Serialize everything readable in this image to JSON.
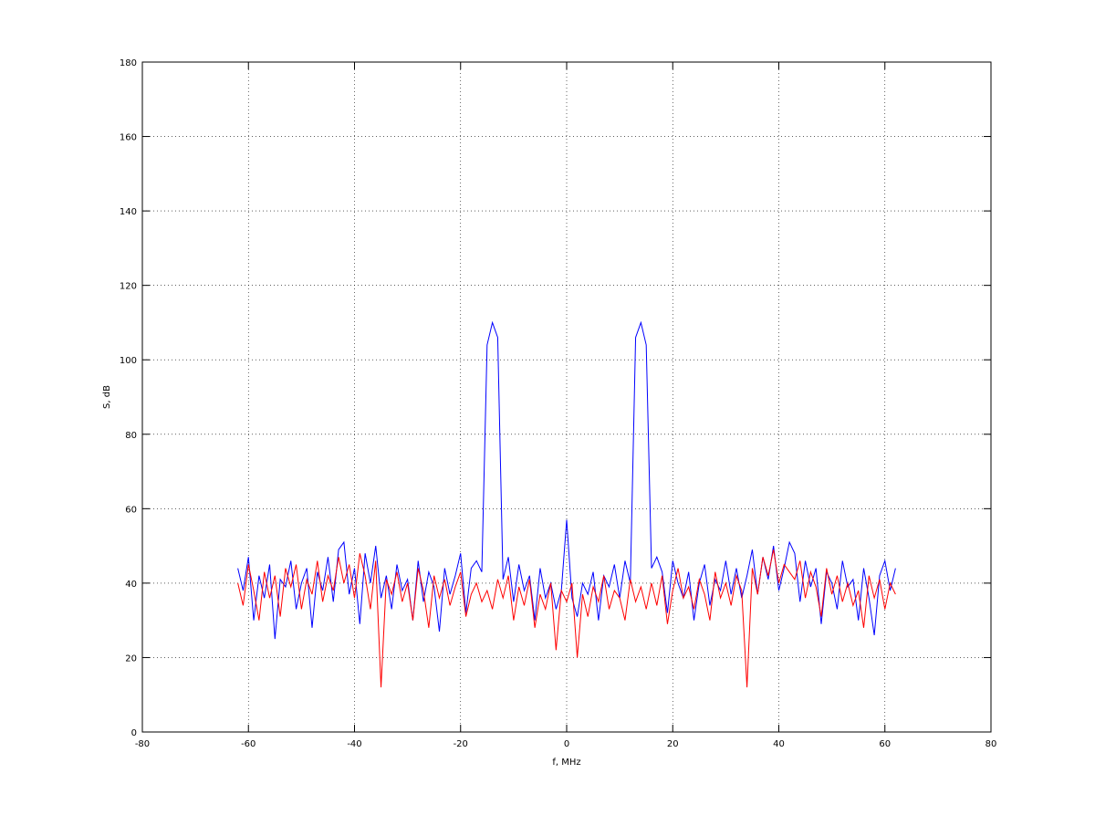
{
  "chart_data": {
    "type": "line",
    "xlabel": "f, MHz",
    "ylabel": "S, dB",
    "x": [
      -62,
      -61,
      -60,
      -59,
      -58,
      -57,
      -56,
      -55,
      -54,
      -53,
      -52,
      -51,
      -50,
      -49,
      -48,
      -47,
      -46,
      -45,
      -44,
      -43,
      -42,
      -41,
      -40,
      -39,
      -38,
      -37,
      -36,
      -35,
      -34,
      -33,
      -32,
      -31,
      -30,
      -29,
      -28,
      -27,
      -26,
      -25,
      -24,
      -23,
      -22,
      -21,
      -20,
      -19,
      -18,
      -17,
      -16,
      -15,
      -14,
      -13,
      -12,
      -11,
      -10,
      -9,
      -8,
      -7,
      -6,
      -5,
      -4,
      -3,
      -2,
      -1,
      0,
      1,
      2,
      3,
      4,
      5,
      6,
      7,
      8,
      9,
      10,
      11,
      12,
      13,
      14,
      15,
      16,
      17,
      18,
      19,
      20,
      21,
      22,
      23,
      24,
      25,
      26,
      27,
      28,
      29,
      30,
      31,
      32,
      33,
      34,
      35,
      36,
      37,
      38,
      39,
      40,
      41,
      42,
      43,
      44,
      45,
      46,
      47,
      48,
      49,
      50,
      51,
      52,
      53,
      54,
      55,
      56,
      57,
      58,
      59,
      60,
      61,
      62
    ],
    "series": [
      {
        "color": "#0000ff",
        "values": [
          44,
          38,
          47,
          30,
          42,
          36,
          45,
          25,
          41,
          39,
          46,
          33,
          40,
          44,
          28,
          43,
          38,
          47,
          35,
          49,
          51,
          37,
          44,
          29,
          48,
          40,
          50,
          36,
          42,
          33,
          45,
          38,
          41,
          30,
          46,
          35,
          43,
          39,
          27,
          44,
          37,
          42,
          48,
          32,
          44,
          46,
          43,
          104,
          110,
          106,
          41,
          47,
          35,
          45,
          38,
          42,
          30,
          44,
          36,
          40,
          33,
          38,
          57,
          36,
          31,
          40,
          37,
          43,
          30,
          42,
          39,
          45,
          36,
          46,
          40,
          106,
          110,
          104,
          44,
          47,
          43,
          32,
          46,
          40,
          36,
          43,
          30,
          40,
          45,
          34,
          41,
          38,
          46,
          37,
          44,
          36,
          42,
          49,
          37,
          47,
          41,
          50,
          38,
          44,
          51,
          48,
          35,
          46,
          39,
          44,
          29,
          43,
          40,
          33,
          46,
          39,
          41,
          30,
          44,
          36,
          26,
          42,
          46,
          38,
          44
        ]
      },
      {
        "color": "#ff0000",
        "values": [
          40,
          34,
          45,
          38,
          30,
          43,
          36,
          42,
          31,
          44,
          39,
          45,
          33,
          41,
          37,
          46,
          35,
          42,
          38,
          47,
          40,
          45,
          36,
          48,
          42,
          33,
          46,
          12,
          41,
          37,
          43,
          35,
          40,
          30,
          44,
          38,
          28,
          42,
          36,
          41,
          34,
          39,
          43,
          31,
          37,
          40,
          35,
          38,
          33,
          41,
          36,
          42,
          30,
          39,
          34,
          41,
          28,
          37,
          33,
          40,
          22,
          38,
          35,
          40,
          20,
          37,
          31,
          39,
          35,
          42,
          33,
          38,
          36,
          30,
          41,
          35,
          39,
          33,
          40,
          34,
          42,
          29,
          38,
          44,
          36,
          39,
          33,
          41,
          37,
          30,
          43,
          36,
          40,
          34,
          42,
          38,
          12,
          44,
          37,
          47,
          42,
          49,
          40,
          45,
          43,
          41,
          46,
          36,
          43,
          39,
          31,
          44,
          37,
          42,
          35,
          40,
          34,
          38,
          28,
          42,
          36,
          41,
          33,
          40,
          37
        ]
      }
    ],
    "xlim": [
      -80,
      80
    ],
    "xticks": [
      -80,
      -60,
      -40,
      -20,
      0,
      20,
      40,
      60,
      80
    ],
    "ylim": [
      0,
      180
    ],
    "yticks": [
      0,
      20,
      40,
      60,
      80,
      100,
      120,
      140,
      160,
      180
    ],
    "grid": true
  }
}
